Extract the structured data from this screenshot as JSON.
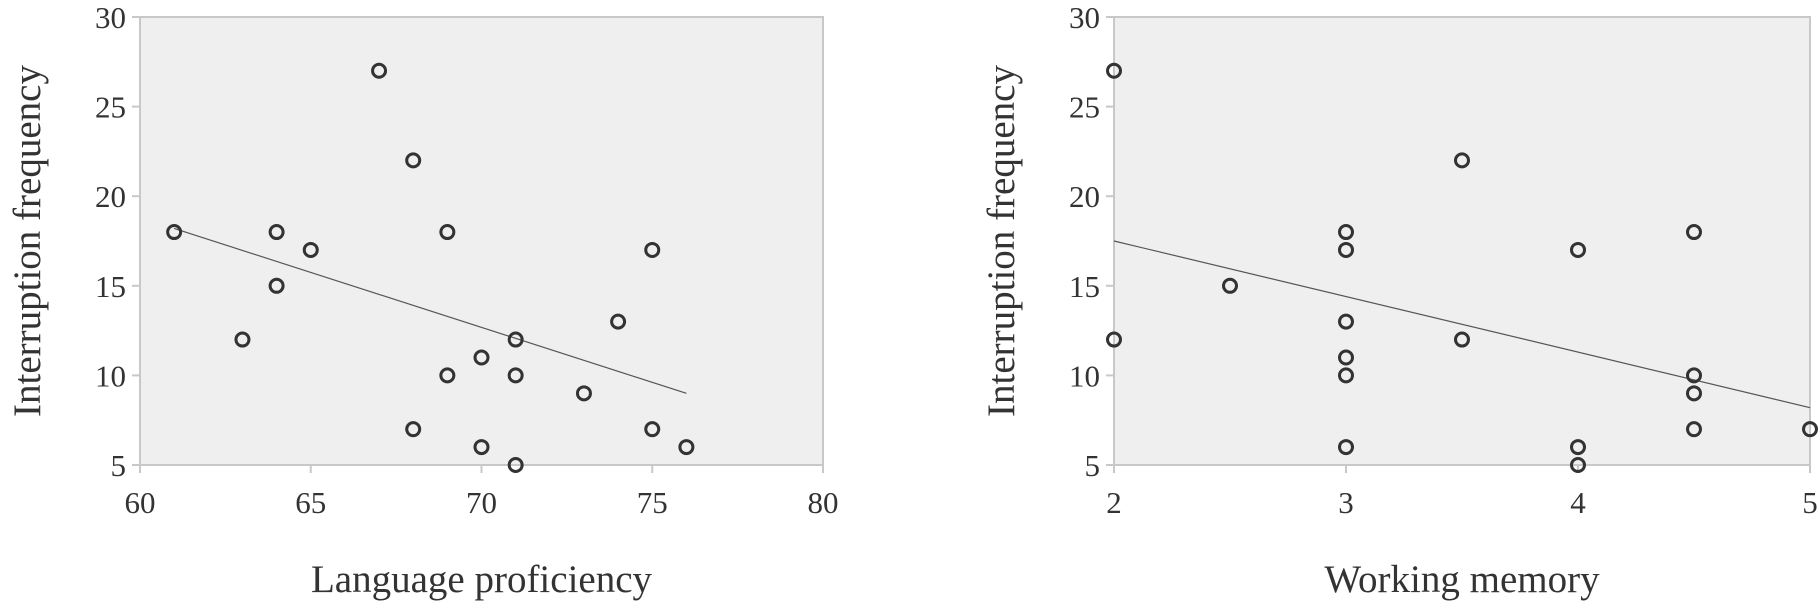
{
  "chart_data": [
    {
      "type": "scatter",
      "title": "",
      "xlabel": "Language proficiency",
      "ylabel": "Interruption frequency",
      "xlim": [
        60,
        80
      ],
      "ylim": [
        5,
        30
      ],
      "xticks": [
        "60",
        "65",
        "70",
        "75",
        "80"
      ],
      "yticks": [
        "5",
        "10",
        "15",
        "20",
        "25",
        "30"
      ],
      "grid": false,
      "legend": "none",
      "background_color": "#efefef",
      "marker_color": "#333333",
      "trendline": {
        "type": "linear",
        "x": [
          61,
          76
        ],
        "y": [
          18.2,
          9.0
        ]
      },
      "points": [
        {
          "x": 61,
          "y": 18
        },
        {
          "x": 63,
          "y": 12
        },
        {
          "x": 64,
          "y": 18
        },
        {
          "x": 64,
          "y": 15
        },
        {
          "x": 65,
          "y": 17
        },
        {
          "x": 67,
          "y": 27
        },
        {
          "x": 68,
          "y": 22
        },
        {
          "x": 68,
          "y": 7
        },
        {
          "x": 69,
          "y": 18
        },
        {
          "x": 69,
          "y": 10
        },
        {
          "x": 70,
          "y": 11
        },
        {
          "x": 70,
          "y": 6
        },
        {
          "x": 71,
          "y": 12
        },
        {
          "x": 71,
          "y": 10
        },
        {
          "x": 71,
          "y": 5
        },
        {
          "x": 73,
          "y": 9
        },
        {
          "x": 74,
          "y": 13
        },
        {
          "x": 75,
          "y": 17
        },
        {
          "x": 75,
          "y": 7
        },
        {
          "x": 76,
          "y": 6
        }
      ]
    },
    {
      "type": "scatter",
      "title": "",
      "xlabel": "Working memory",
      "ylabel": "Interruption frequency",
      "xlim": [
        2,
        5
      ],
      "ylim": [
        5,
        30
      ],
      "xticks": [
        "2",
        "3",
        "4",
        "5"
      ],
      "yticks": [
        "5",
        "10",
        "15",
        "20",
        "25",
        "30"
      ],
      "grid": false,
      "legend": "none",
      "background_color": "#efefef",
      "marker_color": "#333333",
      "trendline": {
        "type": "linear",
        "x": [
          2,
          5
        ],
        "y": [
          17.5,
          8.2
        ]
      },
      "points": [
        {
          "x": 2,
          "y": 27
        },
        {
          "x": 2,
          "y": 12
        },
        {
          "x": 2.5,
          "y": 15
        },
        {
          "x": 3,
          "y": 18
        },
        {
          "x": 3,
          "y": 17
        },
        {
          "x": 3,
          "y": 13
        },
        {
          "x": 3,
          "y": 11
        },
        {
          "x": 3,
          "y": 10
        },
        {
          "x": 3,
          "y": 6
        },
        {
          "x": 3.5,
          "y": 22
        },
        {
          "x": 3.5,
          "y": 12
        },
        {
          "x": 4,
          "y": 17
        },
        {
          "x": 4,
          "y": 6
        },
        {
          "x": 4,
          "y": 5
        },
        {
          "x": 4.5,
          "y": 18
        },
        {
          "x": 4.5,
          "y": 10
        },
        {
          "x": 4.5,
          "y": 9
        },
        {
          "x": 4.5,
          "y": 7
        },
        {
          "x": 5,
          "y": 7
        }
      ]
    }
  ]
}
